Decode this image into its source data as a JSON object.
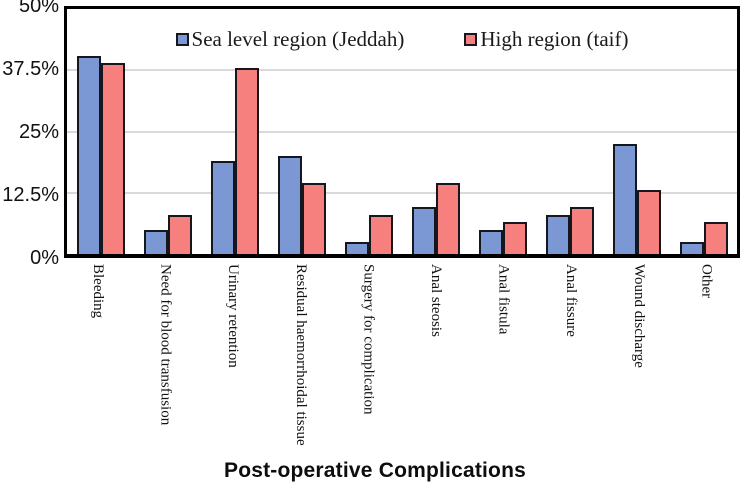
{
  "chart_data": {
    "type": "bar",
    "title": "",
    "xlabel": "Post-operative Complications",
    "ylabel": "",
    "ylim": [
      0,
      50
    ],
    "grid": true,
    "legend_position": "inside-top-center",
    "yticks": [
      {
        "label": "0%",
        "value": 0
      },
      {
        "label": "12.5%",
        "value": 12.5
      },
      {
        "label": "25%",
        "value": 25
      },
      {
        "label": "37.5%",
        "value": 37.5
      },
      {
        "label": "50%",
        "value": 50
      }
    ],
    "categories": [
      "Bleeding",
      "Need for blood transfusion",
      "Urinary retention",
      "Residual haemorrhoidal tissue",
      "Surgery for complication",
      "Anal steosis",
      "Anal fistula",
      "Anal fissure",
      "Wound discharge",
      "Other"
    ],
    "series": [
      {
        "name": "Sea level region (Jeddah)",
        "color": "#7b97d4",
        "values": [
          40.5,
          5,
          19,
          20,
          2.5,
          9.5,
          5,
          8,
          22.5,
          2.5
        ]
      },
      {
        "name": "High region (taif)",
        "color": "#f5807d",
        "values": [
          39,
          8,
          38,
          14.5,
          8,
          14.5,
          6.5,
          9.5,
          13,
          6.5
        ]
      }
    ]
  },
  "style": {
    "bar_border": "#16161f",
    "grid_color": "#d9d9d9",
    "axis_color": "#000000",
    "background": "#ffffff"
  }
}
